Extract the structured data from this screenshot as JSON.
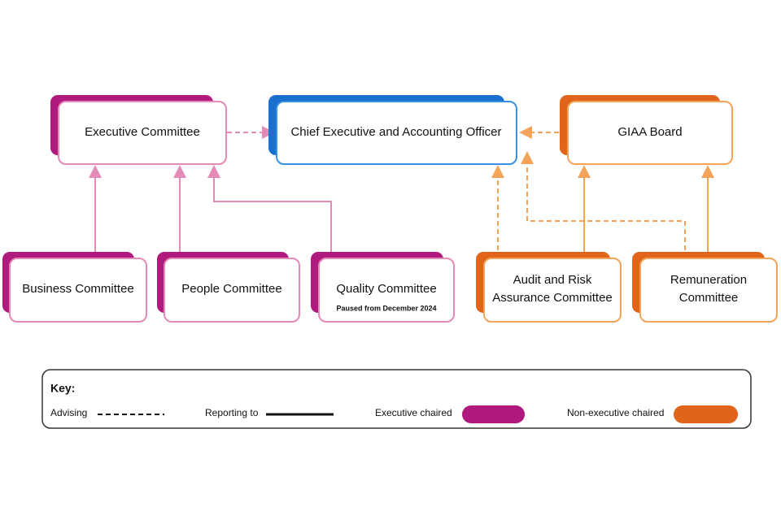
{
  "nodes": [
    {
      "label_lines": [
        "Executive Committee"
      ]
    },
    {
      "label_lines": [
        "Chief Executive and Accounting Officer"
      ]
    },
    {
      "label_lines": [
        "GIAA Board"
      ]
    },
    {
      "label_lines": [
        "Business Committee"
      ]
    },
    {
      "label_lines": [
        "People Committee"
      ]
    },
    {
      "label_lines": [
        "Quality Committee"
      ],
      "note": "Paused from December 2024"
    },
    {
      "label_lines": [
        "Audit and Risk",
        "Assurance Committee"
      ]
    },
    {
      "label_lines": [
        "Remuneration",
        "Committee"
      ]
    }
  ],
  "key": {
    "title": "Key:",
    "items": [
      "Advising",
      "Reporting to",
      "Executive chaired",
      "Non-executive chaired"
    ]
  }
}
